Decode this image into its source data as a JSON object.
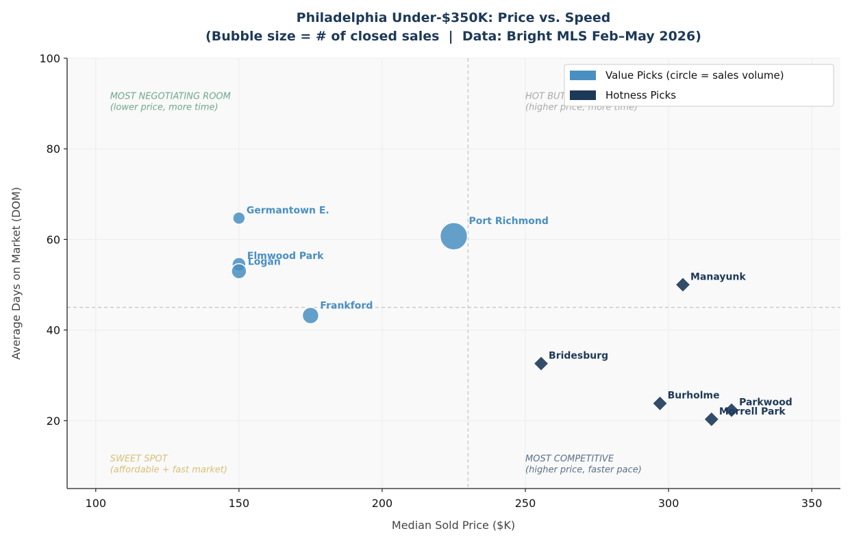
{
  "chart_data": {
    "type": "scatter",
    "title": "Philadelphia Under-$350K: Price vs. Speed",
    "subtitle": "(Bubble size = # of closed sales  |  Data: Bright MLS Feb–May 2026)",
    "xlabel": "Median Sold Price ($K)",
    "ylabel": "Average Days on Market (DOM)",
    "xlim": [
      90,
      360
    ],
    "ylim": [
      5,
      100
    ],
    "xticks": [
      100,
      150,
      200,
      250,
      300,
      350
    ],
    "yticks": [
      20,
      40,
      60,
      80,
      100
    ],
    "grid": true,
    "legend_position": "top-right",
    "ref_lines": {
      "x": 230,
      "y": 45
    },
    "colors": {
      "value": "#4a8fc2",
      "hot": "#1d3958",
      "title": "#1d3958",
      "ref": "#c8c8c8"
    },
    "legend": [
      {
        "label": "Value Picks (circle = sales volume)",
        "color": "#4a8fc2"
      },
      {
        "label": "Hotness Picks",
        "color": "#1d3958"
      }
    ],
    "quadrants": [
      {
        "title": "MOST NEGOTIATING ROOM",
        "sub": "(lower price, more time)",
        "color": "#6fa88b",
        "x": 105,
        "y": 91
      },
      {
        "title": "HOT BUT PATIENT",
        "sub": "(higher price, more time)",
        "color": "#a9a9a9",
        "x": 250,
        "y": 91
      },
      {
        "title": "SWEET SPOT",
        "sub": "(affordable + fast market)",
        "color": "#d9bf78",
        "x": 105,
        "y": 11
      },
      {
        "title": "MOST COMPETITIVE",
        "sub": "(higher price, faster pace)",
        "color": "#5a7088",
        "x": 250,
        "y": 11
      }
    ],
    "series": [
      {
        "name": "Value Picks",
        "marker": "circle",
        "points": [
          {
            "label": "Germantown E.",
            "x": 150,
            "y": 64.7,
            "size": 9
          },
          {
            "label": "Port Richmond",
            "x": 225,
            "y": 60.7,
            "size": 20
          },
          {
            "label": "Elmwood Park",
            "x": 150,
            "y": 54.5,
            "size": 10
          },
          {
            "label": "Logan",
            "x": 150,
            "y": 53.0,
            "size": 11
          },
          {
            "label": "Frankford",
            "x": 175,
            "y": 43.2,
            "size": 12
          }
        ]
      },
      {
        "name": "Hotness Picks",
        "marker": "diamond",
        "points": [
          {
            "label": "Manayunk",
            "x": 305,
            "y": 50.0
          },
          {
            "label": "Bridesburg",
            "x": 255.5,
            "y": 32.6
          },
          {
            "label": "Burholme",
            "x": 297,
            "y": 23.8
          },
          {
            "label": "Parkwood",
            "x": 322,
            "y": 22.3
          },
          {
            "label": "Morrell Park",
            "x": 315,
            "y": 20.3
          }
        ]
      }
    ]
  }
}
